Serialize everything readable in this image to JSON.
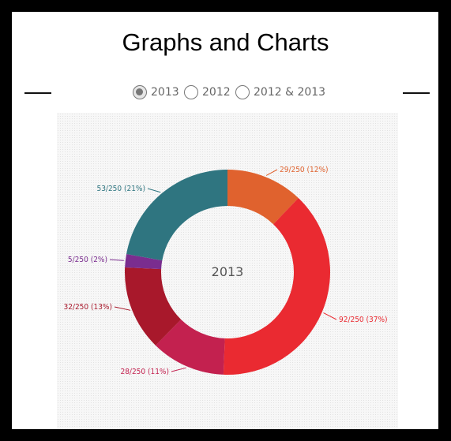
{
  "page": {
    "title": "Graphs and Charts"
  },
  "filters": [
    {
      "label": "2013",
      "checked": true
    },
    {
      "label": "2012",
      "checked": false
    },
    {
      "label": "2012 & 2013",
      "checked": false
    }
  ],
  "chart_data": {
    "type": "pie",
    "center_label": "2013",
    "total": 250,
    "slices": [
      {
        "value": 29,
        "label": "29/250 (12%)",
        "color": "#e0622e"
      },
      {
        "value": 92,
        "label": "92/250 (37%)",
        "color": "#ea2a31"
      },
      {
        "value": 28,
        "label": "28/250 (11%)",
        "color": "#c3214f"
      },
      {
        "value": 32,
        "label": "32/250 (13%)",
        "color": "#a8182b"
      },
      {
        "value": 5,
        "label": "5/250 (2%)",
        "color": "#7a2d8f"
      },
      {
        "value": 53,
        "label": "53/250 (21%)",
        "color": "#2f7580"
      }
    ]
  }
}
